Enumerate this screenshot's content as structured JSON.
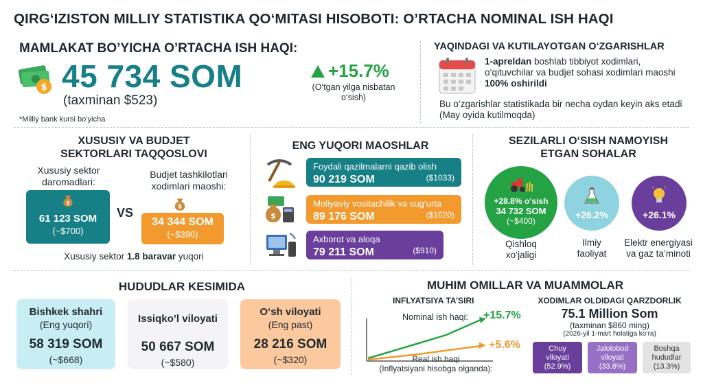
{
  "title": "QIRG‘IZISTON MILLIY STATISTIKA QO‘MITASI HISOBOTI: O’RTACHA NOMINAL ISH HAQI",
  "national": {
    "heading": "MAMLAKAT BO’YICHA O’RTACHA ISH HAQI:",
    "value": "45 734 SOM",
    "usd": "(taxminan $523)",
    "growth": "+15.7%",
    "growth_note_1": "(O‘tgan yilga nisbatan",
    "growth_note_2": "o‘sish)",
    "footnote": "*Milliy bank kursi bo‘yicha"
  },
  "changes": {
    "heading": "YAQINDAGI VA KUTILAYOTGAN O‘ZGARISHLAR",
    "p1_bold": "1-apreldan",
    "p1_text": " boshlab tibbiyot xodimlari, o‘qituvchilar va budjet sohasi xodimlari maoshi ",
    "p1_bold2": "100% oshirildi",
    "p2": "Bu o‘zgarishlar statistikada bir necha oydan keyin aks etadi (May oyida kutilmoqda)"
  },
  "sectors": {
    "heading_1": "XUSUSIY VA BUDJET",
    "heading_2": "SEKTORLARI TAQQOSLOVI",
    "private_label_1": "Xususiy sektor",
    "private_label_2": "daromadlari:",
    "private_value": "61 123 SOM",
    "private_usd": "(~$700)",
    "vs": "VS",
    "budget_label_1": "Budjet tashkilotlari",
    "budget_label_2": "xodimlari maoshi:",
    "budget_value": "34 344 SOM",
    "budget_usd": "(~$390)",
    "note_pre": "Xususiy sektor ",
    "note_bold": "1.8 baravar",
    "note_post": " yuqori"
  },
  "top": {
    "heading": "ENG YUQORI MAOSHLAR",
    "items": [
      {
        "label": "Foydali qazilmalarni qazib olish",
        "value": "90 219 SOM",
        "usd": "($1033)"
      },
      {
        "label": "Moliyaviy vositachilik va sug‘urta",
        "value": "89 176 SOM",
        "usd": "($1020)"
      },
      {
        "label": "Axborot va aloqa",
        "value": "79 211 SOM",
        "usd": "($910)"
      }
    ]
  },
  "growth": {
    "heading_1": "SEZILARLI O‘SISH NAMOYISH",
    "heading_2": "ETGAN SOHALAR",
    "agri_pct": "+28.8% o‘sish",
    "agri_value": "34 732 SOM",
    "agri_usd": "(~$400)",
    "agri_label_1": "Qishloq",
    "agri_label_2": "xo‘jaligi",
    "sci_pct": "+26.2%",
    "sci_label_1": "Ilmiy",
    "sci_label_2": "faoliyat",
    "energy_pct": "+26.1%",
    "energy_label_1": "Elektr energiyasi",
    "energy_label_2": "va gaz ta’minoti"
  },
  "regions": {
    "heading": "HUDUDLAR KESIMIDA",
    "items": [
      {
        "name": "Bishkek shahri",
        "sub": "(Eng yuqori)",
        "value": "58 319 SOM",
        "usd": "(~$668)"
      },
      {
        "name": "Issiqko’l viloyati",
        "sub": "",
        "value": "50 667 SOM",
        "usd": "(~$580)"
      },
      {
        "name": "O‘sh viloyati",
        "sub": "(Eng past)",
        "value": "28 216 SOM",
        "usd": "(~$320)"
      }
    ]
  },
  "factors": {
    "heading": "MUHIM OMILLAR VA MUAMMOLAR",
    "inflation": {
      "heading": "INFLYATSIYA TA’SIRI",
      "nominal_label": "Nominal ish haqi:",
      "nominal_value": "+15.7%",
      "real_value": "+5.6%",
      "real_label_1": "Real ish haqi",
      "real_label_2": "(Inflyatsiyani hisobga olganda):"
    },
    "debt": {
      "heading": "XODIMLAR OLDIDAGI QARZDORLIK",
      "value": "75.1 Million Som",
      "usd": "(taxminan $860 ming)",
      "date": "(2026-yil 1-mart holatiga ko‘ra)",
      "items": [
        {
          "name_1": "Chuy",
          "name_2": "viloyati",
          "pct": "(52.9%)"
        },
        {
          "name_1": "Jalolobod",
          "name_2": "viloyati",
          "pct": "(33.8%)"
        },
        {
          "name_1": "Boshqa",
          "name_2": "hududlar",
          "pct": "(13.3%)"
        }
      ]
    }
  },
  "colors": {
    "teal": "#177f86",
    "orange": "#f29a2e",
    "purple": "#6a3e9b",
    "green": "#25a244",
    "lightblue": "#8ed3df"
  }
}
